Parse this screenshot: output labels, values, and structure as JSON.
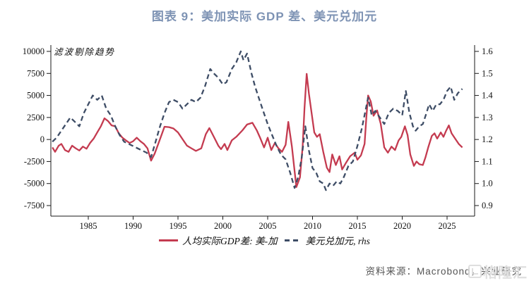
{
  "title": "图表 9：美加实际 GDP 差、美元兑加元",
  "annotation": "滤波剔除趋势",
  "source": "资料来源：Macrobond，兴业研究",
  "watermark": "格隆汇",
  "legend": [
    {
      "label": "人均实际GDP差: 美-加",
      "style": "solid"
    },
    {
      "label": "美元兑加元, rhs",
      "style": "dashed"
    }
  ],
  "colors": {
    "title_accent": "#7E93B4",
    "gdp_line": "#C43B50",
    "usdcad_line": "#3E4D66",
    "axis": "#1A1A1A",
    "source_text": "#555555",
    "watermark": "#DCDCDC"
  },
  "chart_data": {
    "type": "line",
    "title": "图表 9：美加实际 GDP 差、美元兑加元",
    "annotation": "滤波剔除趋势",
    "grid": false,
    "legend_position": "bottom",
    "x_axis": {
      "ticks": [
        1985,
        1990,
        1995,
        2000,
        2005,
        2010,
        2015,
        2020,
        2025
      ],
      "range": [
        1980.8,
        2028.1
      ]
    },
    "y_axis_left": {
      "ticks": [
        10000,
        7500,
        5000,
        2500,
        0,
        -2500,
        -5000,
        -7500
      ],
      "range": [
        -7500,
        10000
      ]
    },
    "y_axis_right": {
      "ticks": [
        1.6,
        1.5,
        1.4,
        1.3,
        1.2,
        1.1,
        1.0,
        0.9
      ],
      "range": [
        0.9,
        1.6
      ]
    },
    "series": [
      {
        "name": "人均实际GDP差: 美-加",
        "axis": "left",
        "style": "solid",
        "color": "#C43B50",
        "points": [
          [
            1981.0,
            -900
          ],
          [
            1981.3,
            -1400
          ],
          [
            1981.7,
            -700
          ],
          [
            1982.0,
            -500
          ],
          [
            1982.4,
            -1200
          ],
          [
            1982.8,
            -1400
          ],
          [
            1983.2,
            -700
          ],
          [
            1983.6,
            -1000
          ],
          [
            1984.0,
            -1250
          ],
          [
            1984.4,
            -800
          ],
          [
            1984.8,
            -1050
          ],
          [
            1985.2,
            -400
          ],
          [
            1985.6,
            100
          ],
          [
            1986.0,
            800
          ],
          [
            1986.4,
            1500
          ],
          [
            1986.8,
            2400
          ],
          [
            1987.2,
            2100
          ],
          [
            1987.6,
            1600
          ],
          [
            1988.0,
            1500
          ],
          [
            1988.4,
            700
          ],
          [
            1988.8,
            200
          ],
          [
            1989.2,
            -100
          ],
          [
            1989.6,
            -400
          ],
          [
            1990.0,
            -200
          ],
          [
            1990.4,
            200
          ],
          [
            1990.8,
            -200
          ],
          [
            1991.2,
            -500
          ],
          [
            1991.6,
            -1000
          ],
          [
            1992.0,
            -2400
          ],
          [
            1992.4,
            -1600
          ],
          [
            1992.8,
            -500
          ],
          [
            1993.2,
            600
          ],
          [
            1993.5,
            1450
          ],
          [
            1994.0,
            1400
          ],
          [
            1994.5,
            1250
          ],
          [
            1995.0,
            800
          ],
          [
            1995.6,
            -100
          ],
          [
            1996.0,
            -700
          ],
          [
            1996.5,
            -1000
          ],
          [
            1997.0,
            -1300
          ],
          [
            1997.6,
            -1000
          ],
          [
            1998.1,
            600
          ],
          [
            1998.5,
            1300
          ],
          [
            1999.0,
            300
          ],
          [
            1999.5,
            -700
          ],
          [
            1999.8,
            -1100
          ],
          [
            2000.2,
            -500
          ],
          [
            2000.5,
            -1200
          ],
          [
            2001.0,
            -100
          ],
          [
            2001.5,
            300
          ],
          [
            2002.2,
            1050
          ],
          [
            2002.7,
            1700
          ],
          [
            2003.3,
            1900
          ],
          [
            2003.8,
            1000
          ],
          [
            2004.2,
            100
          ],
          [
            2004.6,
            -900
          ],
          [
            2005.0,
            200
          ],
          [
            2005.4,
            -1200
          ],
          [
            2005.8,
            -400
          ],
          [
            2006.2,
            -1000
          ],
          [
            2006.6,
            -1400
          ],
          [
            2007.0,
            -600
          ],
          [
            2007.3,
            2000
          ],
          [
            2007.7,
            -800
          ],
          [
            2008.2,
            -5400
          ],
          [
            2008.6,
            -4300
          ],
          [
            2008.9,
            -800
          ],
          [
            2009.1,
            3500
          ],
          [
            2009.35,
            7450
          ],
          [
            2009.6,
            5200
          ],
          [
            2009.9,
            3000
          ],
          [
            2010.2,
            800
          ],
          [
            2010.5,
            300
          ],
          [
            2010.8,
            600
          ],
          [
            2011.2,
            -1400
          ],
          [
            2011.6,
            -3200
          ],
          [
            2011.9,
            -3700
          ],
          [
            2012.2,
            -1700
          ],
          [
            2012.6,
            -2900
          ],
          [
            2013.0,
            -1900
          ],
          [
            2013.3,
            -3400
          ],
          [
            2013.7,
            -2700
          ],
          [
            2014.2,
            -1900
          ],
          [
            2014.7,
            -1500
          ],
          [
            2015.0,
            -2300
          ],
          [
            2015.4,
            -1800
          ],
          [
            2015.8,
            -500
          ],
          [
            2016.0,
            2500
          ],
          [
            2016.2,
            5000
          ],
          [
            2016.5,
            4300
          ],
          [
            2016.8,
            2700
          ],
          [
            2017.2,
            3300
          ],
          [
            2017.6,
            1800
          ],
          [
            2018.0,
            -900
          ],
          [
            2018.4,
            -1500
          ],
          [
            2018.8,
            -800
          ],
          [
            2019.2,
            -1200
          ],
          [
            2019.6,
            -100
          ],
          [
            2019.9,
            300
          ],
          [
            2020.3,
            1500
          ],
          [
            2020.6,
            500
          ],
          [
            2020.9,
            -1700
          ],
          [
            2021.3,
            -3000
          ],
          [
            2021.6,
            -2500
          ],
          [
            2021.9,
            -2800
          ],
          [
            2022.3,
            -2900
          ],
          [
            2022.6,
            -2000
          ],
          [
            2022.9,
            -900
          ],
          [
            2023.3,
            400
          ],
          [
            2023.6,
            700
          ],
          [
            2023.9,
            100
          ],
          [
            2024.3,
            800
          ],
          [
            2024.6,
            300
          ],
          [
            2024.9,
            1000
          ],
          [
            2025.2,
            1600
          ],
          [
            2025.5,
            700
          ],
          [
            2025.9,
            100
          ],
          [
            2026.3,
            -500
          ],
          [
            2026.7,
            -900
          ]
        ]
      },
      {
        "name": "美元兑加元, rhs",
        "axis": "right",
        "style": "dashed",
        "color": "#3E4D66",
        "points": [
          [
            1981.0,
            1.19
          ],
          [
            1981.5,
            1.21
          ],
          [
            1982.0,
            1.24
          ],
          [
            1982.5,
            1.27
          ],
          [
            1983.0,
            1.3
          ],
          [
            1983.5,
            1.28
          ],
          [
            1984.0,
            1.26
          ],
          [
            1984.5,
            1.32
          ],
          [
            1985.0,
            1.36
          ],
          [
            1985.5,
            1.4
          ],
          [
            1986.0,
            1.38
          ],
          [
            1986.5,
            1.4
          ],
          [
            1987.0,
            1.34
          ],
          [
            1987.5,
            1.31
          ],
          [
            1988.0,
            1.26
          ],
          [
            1988.5,
            1.22
          ],
          [
            1989.0,
            1.19
          ],
          [
            1989.5,
            1.18
          ],
          [
            1990.0,
            1.17
          ],
          [
            1990.5,
            1.16
          ],
          [
            1991.0,
            1.15
          ],
          [
            1991.5,
            1.14
          ],
          [
            1992.0,
            1.12
          ],
          [
            1992.5,
            1.19
          ],
          [
            1993.0,
            1.26
          ],
          [
            1993.5,
            1.32
          ],
          [
            1994.0,
            1.37
          ],
          [
            1994.5,
            1.38
          ],
          [
            1995.0,
            1.37
          ],
          [
            1995.5,
            1.34
          ],
          [
            1996.0,
            1.36
          ],
          [
            1996.5,
            1.38
          ],
          [
            1997.0,
            1.37
          ],
          [
            1997.5,
            1.39
          ],
          [
            1998.0,
            1.44
          ],
          [
            1998.6,
            1.52
          ],
          [
            1999.0,
            1.5
          ],
          [
            1999.5,
            1.48
          ],
          [
            2000.0,
            1.45
          ],
          [
            2000.4,
            1.46
          ],
          [
            2001.0,
            1.52
          ],
          [
            2001.5,
            1.55
          ],
          [
            2002.0,
            1.6
          ],
          [
            2002.3,
            1.56
          ],
          [
            2002.7,
            1.59
          ],
          [
            2003.2,
            1.5
          ],
          [
            2003.6,
            1.44
          ],
          [
            2004.0,
            1.39
          ],
          [
            2004.5,
            1.33
          ],
          [
            2005.0,
            1.27
          ],
          [
            2005.5,
            1.22
          ],
          [
            2006.0,
            1.17
          ],
          [
            2006.5,
            1.13
          ],
          [
            2007.0,
            1.11
          ],
          [
            2007.5,
            1.05
          ],
          [
            2008.0,
            0.98
          ],
          [
            2008.4,
            1.03
          ],
          [
            2008.8,
            1.12
          ],
          [
            2009.2,
            1.26
          ],
          [
            2009.6,
            1.15
          ],
          [
            2010.0,
            1.07
          ],
          [
            2010.4,
            1.05
          ],
          [
            2010.8,
            1.01
          ],
          [
            2011.2,
            1.0
          ],
          [
            2011.5,
            0.97
          ],
          [
            2011.9,
            1.0
          ],
          [
            2012.3,
            0.99
          ],
          [
            2012.7,
            1.01
          ],
          [
            2013.1,
            1.0
          ],
          [
            2013.5,
            1.03
          ],
          [
            2014.0,
            1.08
          ],
          [
            2014.5,
            1.1
          ],
          [
            2015.0,
            1.17
          ],
          [
            2015.5,
            1.25
          ],
          [
            2016.2,
            1.39
          ],
          [
            2016.6,
            1.31
          ],
          [
            2017.0,
            1.33
          ],
          [
            2017.5,
            1.3
          ],
          [
            2018.0,
            1.27
          ],
          [
            2018.5,
            1.32
          ],
          [
            2019.0,
            1.34
          ],
          [
            2019.5,
            1.33
          ],
          [
            2020.0,
            1.31
          ],
          [
            2020.4,
            1.42
          ],
          [
            2020.8,
            1.32
          ],
          [
            2021.2,
            1.26
          ],
          [
            2021.5,
            1.24
          ],
          [
            2021.9,
            1.26
          ],
          [
            2022.3,
            1.27
          ],
          [
            2022.7,
            1.32
          ],
          [
            2023.0,
            1.36
          ],
          [
            2023.4,
            1.33
          ],
          [
            2023.8,
            1.36
          ],
          [
            2024.2,
            1.36
          ],
          [
            2024.6,
            1.38
          ],
          [
            2025.0,
            1.42
          ],
          [
            2025.4,
            1.44
          ],
          [
            2025.8,
            1.38
          ],
          [
            2026.2,
            1.41
          ],
          [
            2026.7,
            1.43
          ]
        ]
      }
    ]
  }
}
